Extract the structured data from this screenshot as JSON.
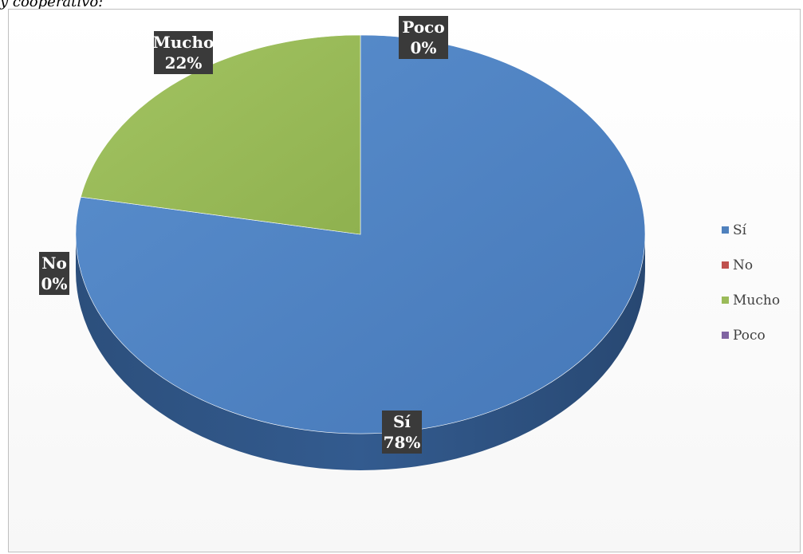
{
  "caption": "y cooperativo:",
  "chart_data": {
    "type": "pie",
    "three_d": true,
    "legend_position": "right",
    "series": [
      {
        "name": "Sí",
        "value": 78,
        "color": "#4f81bd",
        "label": "Sí",
        "percent_label": "78%"
      },
      {
        "name": "No",
        "value": 0,
        "color": "#c0504d",
        "label": "No",
        "percent_label": "0%"
      },
      {
        "name": "Mucho",
        "value": 22,
        "color": "#9bbb59",
        "label": "Mucho",
        "percent_label": "22%"
      },
      {
        "name": "Poco",
        "value": 0,
        "color": "#8064a2",
        "label": "Poco",
        "percent_label": "0%"
      }
    ]
  }
}
